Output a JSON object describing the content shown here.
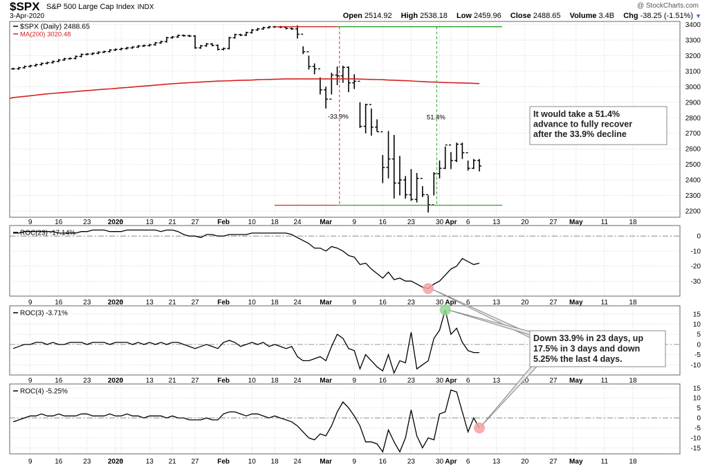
{
  "header": {
    "symbol": "$SPX",
    "name": "S&P 500 Large Cap Index",
    "exchange": "INDX",
    "date": "3-Apr-2020",
    "watermark": "@ StockCharts.com",
    "ohlc": [
      {
        "label": "Open",
        "value": "2514.92"
      },
      {
        "label": "High",
        "value": "2538.18"
      },
      {
        "label": "Low",
        "value": "2459.96"
      },
      {
        "label": "Close",
        "value": "2488.65"
      },
      {
        "label": "Volume",
        "value": "3.4B"
      },
      {
        "label": "Chg",
        "value": "-38.25 (-1.51%)"
      }
    ]
  },
  "colors": {
    "price": "#000000",
    "ma": "#d42020",
    "level": "#cc1010",
    "level2": "#169616",
    "panel_border": "#666666",
    "grid": "#b8b8b8",
    "annotation_pointer": "#888888",
    "marker_red": "#f4a0a0",
    "marker_green": "#90d890"
  },
  "x_axis": {
    "tick_labels": [
      {
        "i": 3,
        "text": "9"
      },
      {
        "i": 8,
        "text": "16"
      },
      {
        "i": 13,
        "text": "23"
      },
      {
        "i": 18,
        "text": "2020"
      },
      {
        "i": 19,
        "text": "6"
      },
      {
        "i": 24,
        "text": "13"
      },
      {
        "i": 28,
        "text": "21"
      },
      {
        "i": 32,
        "text": "27"
      },
      {
        "i": 37,
        "text": "Feb"
      },
      {
        "i": 42,
        "text": "10"
      },
      {
        "i": 46,
        "text": "18"
      },
      {
        "i": 50,
        "text": "24"
      },
      {
        "i": 55,
        "text": "Mar"
      },
      {
        "i": 60,
        "text": "9"
      },
      {
        "i": 65,
        "text": "16"
      },
      {
        "i": 70,
        "text": "23"
      },
      {
        "i": 75,
        "text": "30"
      },
      {
        "i": 77,
        "text": "Apr"
      },
      {
        "i": 80,
        "text": "6"
      },
      {
        "i": 85,
        "text": "13"
      },
      {
        "i": 90,
        "text": "20"
      },
      {
        "i": 95,
        "text": "27"
      },
      {
        "i": 99,
        "text": "May"
      },
      {
        "i": 104,
        "text": "11"
      },
      {
        "i": 109,
        "text": "18"
      }
    ]
  },
  "annotations": {
    "recover_note": [
      "It would take a 51.4%",
      "advance to fully recover",
      "after the 33.9% decline"
    ],
    "roc_note": [
      "Down 33.9% in 23 days, up",
      "17.5% in 3 days and down",
      "5.25% the last 4 days."
    ],
    "decline_label": "-33.9%",
    "advance_label": "51.4%"
  },
  "chart_data": [
    {
      "type": "ohlc",
      "panel": "price",
      "legend": [
        {
          "text": "$SPX (Daily) 2488.65",
          "color": "#000000",
          "marker": "line"
        },
        {
          "text": "MA(200) 3020.48",
          "color": "#d42020",
          "marker": "line"
        }
      ],
      "ylim": [
        2160,
        3420
      ],
      "yticks": [
        2200,
        2300,
        2400,
        2500,
        2600,
        2700,
        2800,
        2900,
        3000,
        3100,
        3200,
        3300,
        3400
      ],
      "closes": [
        3115,
        3122,
        3130,
        3135,
        3142,
        3150,
        3155,
        3163,
        3172,
        3180,
        3182,
        3195,
        3208,
        3210,
        3215,
        3222,
        3226,
        3236,
        3240,
        3245,
        3250,
        3255,
        3262,
        3265,
        3270,
        3282,
        3290,
        3315,
        3320,
        3330,
        3328,
        3326,
        3250,
        3263,
        3275,
        3266,
        3240,
        3246,
        3315,
        3335,
        3332,
        3348,
        3365,
        3372,
        3380,
        3385,
        3385,
        3383,
        3375,
        3372,
        3338,
        3225,
        3130,
        3115,
        2980,
        2920,
        3075,
        3070,
        3125,
        3025,
        3035,
        2745,
        2885,
        2740,
        2710,
        2480,
        2535,
        2380,
        2400,
        2305,
        2275,
        2410,
        2305,
        2240,
        2440,
        2475,
        2625,
        2525,
        2630,
        2575,
        2475,
        2525,
        2490
      ],
      "ohlc_detail": [
        {
          "i": 50,
          "high": 3395,
          "low": 3310
        },
        {
          "i": 51,
          "high": 3260,
          "low": 3210
        },
        {
          "i": 52,
          "high": 3200,
          "low": 3110
        },
        {
          "i": 53,
          "high": 3150,
          "low": 3080
        },
        {
          "i": 54,
          "high": 3060,
          "low": 2950
        },
        {
          "i": 55,
          "high": 3000,
          "low": 2860
        },
        {
          "i": 56,
          "high": 3090,
          "low": 2950
        },
        {
          "i": 57,
          "high": 3130,
          "low": 3010
        },
        {
          "i": 58,
          "high": 3135,
          "low": 3025
        },
        {
          "i": 59,
          "high": 3130,
          "low": 2965
        },
        {
          "i": 60,
          "high": 3080,
          "low": 2985
        },
        {
          "i": 61,
          "high": 2900,
          "low": 2735
        },
        {
          "i": 62,
          "high": 2890,
          "low": 2700
        },
        {
          "i": 63,
          "high": 2860,
          "low": 2685
        },
        {
          "i": 64,
          "high": 2790,
          "low": 2710
        },
        {
          "i": 65,
          "high": 2560,
          "low": 2380
        },
        {
          "i": 66,
          "high": 2715,
          "low": 2410
        },
        {
          "i": 67,
          "high": 2690,
          "low": 2280
        },
        {
          "i": 68,
          "high": 2555,
          "low": 2300
        },
        {
          "i": 69,
          "high": 2425,
          "low": 2280
        },
        {
          "i": 70,
          "high": 2470,
          "low": 2265
        },
        {
          "i": 71,
          "high": 2445,
          "low": 2255
        },
        {
          "i": 72,
          "high": 2360,
          "low": 2290
        },
        {
          "i": 73,
          "high": 2300,
          "low": 2190
        },
        {
          "i": 74,
          "high": 2450,
          "low": 2300
        },
        {
          "i": 75,
          "high": 2525,
          "low": 2410
        },
        {
          "i": 76,
          "high": 2615,
          "low": 2470
        },
        {
          "i": 77,
          "high": 2580,
          "low": 2470
        },
        {
          "i": 78,
          "high": 2640,
          "low": 2515
        },
        {
          "i": 79,
          "high": 2640,
          "low": 2535
        },
        {
          "i": 80,
          "high": 2525,
          "low": 2460
        },
        {
          "i": 81,
          "high": 2535,
          "low": 2470
        },
        {
          "i": 82,
          "high": 2535,
          "low": 2455
        }
      ],
      "ma200": [
        2930,
        2934,
        2938,
        2942,
        2946,
        2950,
        2954,
        2957,
        2960,
        2963,
        2966,
        2969,
        2972,
        2975,
        2978,
        2981,
        2984,
        2986,
        2989,
        2992,
        2995,
        2998,
        3001,
        3004,
        3007,
        3010,
        3013,
        3016,
        3019,
        3022,
        3024,
        3026,
        3028,
        3030,
        3032,
        3034,
        3036,
        3037,
        3038,
        3040,
        3041,
        3042,
        3043,
        3045,
        3046,
        3047,
        3048,
        3049,
        3050,
        3050,
        3050,
        3050,
        3050,
        3050,
        3050,
        3050,
        3050,
        3050,
        3050,
        3050,
        3050,
        3049,
        3048,
        3047,
        3046,
        3045,
        3043,
        3042,
        3040,
        3039,
        3037,
        3035,
        3033,
        3031,
        3030,
        3028,
        3027,
        3026,
        3025,
        3024,
        3023,
        3022,
        3020
      ],
      "levels": [
        {
          "y": 3386,
          "color": "red",
          "from": 46,
          "to": 57
        },
        {
          "y": 3386,
          "color": "green",
          "from": 57,
          "to": 86
        },
        {
          "y": 2237,
          "color": "red",
          "from": 46,
          "to": 57
        },
        {
          "y": 2237,
          "color": "green",
          "from": 57,
          "to": 86
        }
      ],
      "verticals": [
        {
          "i": 57.4,
          "color": "red",
          "label": "-33.9%"
        },
        {
          "i": 74.5,
          "color": "green",
          "label": "51.4%"
        }
      ]
    },
    {
      "type": "line",
      "panel": "roc",
      "name": "ROC(23) -17.14%",
      "ylim": [
        -40,
        7
      ],
      "yticks": [
        0,
        -10,
        -20,
        -30
      ],
      "zero": 0,
      "values": [
        2,
        2,
        3,
        3,
        3,
        3,
        3,
        3,
        2,
        2,
        2,
        2,
        3,
        3,
        4,
        4,
        4,
        3,
        3,
        3,
        4,
        4,
        4,
        4,
        4,
        4,
        3,
        4,
        4,
        3,
        1,
        0,
        0,
        -1,
        1,
        1,
        0,
        0,
        1,
        1,
        1,
        1,
        2,
        2,
        2,
        2,
        2,
        2,
        2,
        1,
        -1,
        -3,
        -5,
        -8,
        -8,
        -10,
        -7,
        -8,
        -10,
        -13,
        -14,
        -19,
        -18,
        -22,
        -25,
        -28,
        -24,
        -29,
        -28,
        -30,
        -30,
        -32,
        -34,
        -35,
        -32,
        -30,
        -26,
        -22,
        -20,
        -15,
        -17,
        -19,
        -18
      ],
      "marker": {
        "i": 73,
        "value": -35,
        "color": "red"
      }
    },
    {
      "type": "line",
      "panel": "roc",
      "name": "ROC(3) -3.71%",
      "ylim": [
        -15,
        19
      ],
      "yticks": [
        15,
        10,
        5,
        0,
        -5,
        -10
      ],
      "zero": 0,
      "values": [
        -2,
        -1,
        0,
        0,
        1,
        1,
        0,
        1,
        0,
        0,
        1,
        1,
        1,
        0,
        1,
        1,
        1,
        0,
        1,
        1,
        1,
        0,
        1,
        0,
        1,
        0,
        1,
        0,
        1,
        1,
        0,
        -1,
        -2,
        -1,
        0,
        -1,
        -2,
        1,
        2,
        1,
        -1,
        0,
        1,
        0,
        1,
        -1,
        0,
        -1,
        -2,
        -1,
        -6,
        -8,
        -8,
        -7,
        -6,
        -8,
        -1,
        5,
        3,
        -2,
        -3,
        -12,
        -5,
        -8,
        -11,
        -13,
        -5,
        -14,
        -8,
        -9,
        6,
        -12,
        -10,
        -8,
        3,
        7,
        17,
        5,
        8,
        1,
        -3,
        -4,
        -4
      ],
      "marker": {
        "i": 76,
        "value": 17,
        "color": "green"
      }
    },
    {
      "type": "line",
      "panel": "roc",
      "name": "ROC(4) -5.25%",
      "ylim": [
        -18,
        17
      ],
      "yticks": [
        15,
        10,
        5,
        0,
        -5,
        -10,
        -15
      ],
      "zero": 0,
      "values": [
        -2,
        -1,
        0,
        1,
        1,
        2,
        1,
        1,
        2,
        1,
        1,
        1,
        2,
        2,
        1,
        1,
        1,
        2,
        1,
        1,
        2,
        1,
        1,
        0,
        1,
        1,
        1,
        0,
        1,
        0,
        0,
        -1,
        -1,
        -1,
        0,
        -1,
        -1,
        2,
        3,
        3,
        2,
        1,
        2,
        2,
        1,
        0,
        1,
        0,
        -1,
        -2,
        -4,
        -7,
        -10,
        -11,
        -8,
        -9,
        -4,
        3,
        8,
        5,
        1,
        -4,
        -12,
        -12,
        -13,
        -17,
        -6,
        -12,
        -17,
        -10,
        4,
        -9,
        -15,
        -10,
        -11,
        2,
        3,
        14,
        13,
        3,
        -7,
        0,
        -5
      ],
      "marker": {
        "i": 82,
        "value": -5,
        "color": "red"
      }
    }
  ]
}
